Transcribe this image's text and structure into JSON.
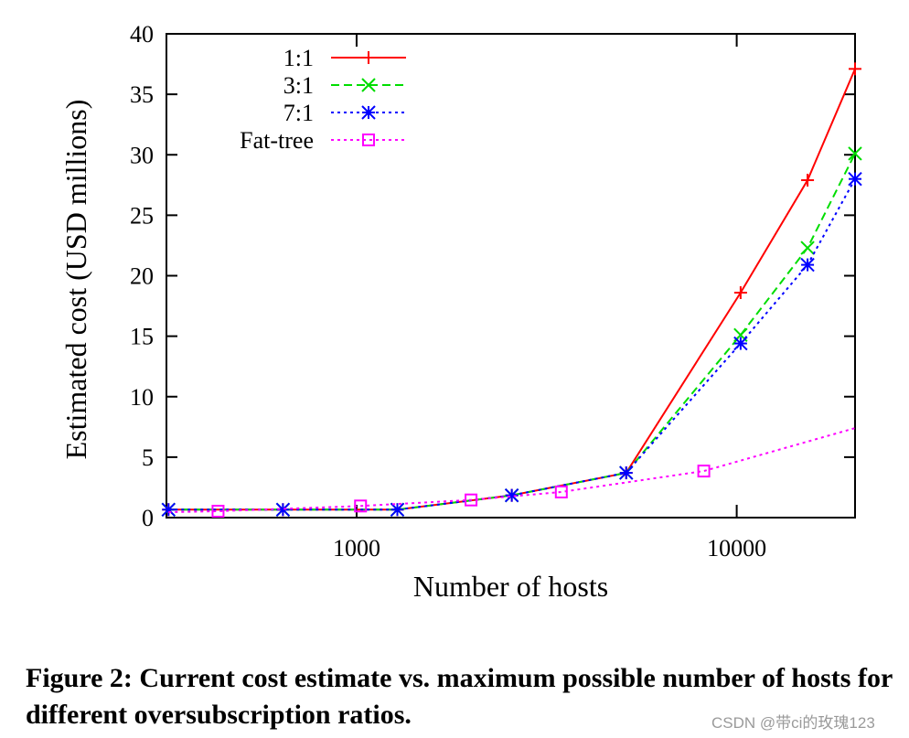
{
  "chart_data": {
    "type": "line",
    "xlabel": "Number of hosts",
    "ylabel": "Estimated cost (USD millions)",
    "xscale": "log",
    "xlim": [
      316,
      20480
    ],
    "ylim": [
      0,
      40
    ],
    "xticks": [
      1000,
      10000
    ],
    "xtick_labels": [
      "1000",
      "10000"
    ],
    "yticks": [
      0,
      5,
      10,
      15,
      20,
      25,
      30,
      35,
      40
    ],
    "grid": false,
    "legend_position": "top-left",
    "series": [
      {
        "name": "1:1",
        "color": "#ff0000",
        "dash": "solid",
        "marker": "plus",
        "x": [
          320,
          640,
          1280,
          2560,
          5120,
          10240,
          15360,
          20480
        ],
        "y": [
          0.66,
          0.66,
          0.66,
          1.84,
          3.7,
          18.6,
          27.9,
          37.1
        ]
      },
      {
        "name": "3:1",
        "color": "#00dd00",
        "dash": "dashed",
        "marker": "x",
        "x": [
          320,
          640,
          1280,
          2560,
          5120,
          10240,
          15360,
          20480
        ],
        "y": [
          0.66,
          0.66,
          0.66,
          1.84,
          3.7,
          15.1,
          22.3,
          30.1
        ]
      },
      {
        "name": "7:1",
        "color": "#0000ff",
        "dash": "dotted",
        "marker": "asterisk",
        "x": [
          320,
          640,
          1280,
          2560,
          5120,
          10240,
          15360,
          20480
        ],
        "y": [
          0.66,
          0.66,
          0.66,
          1.84,
          3.7,
          14.4,
          20.9,
          28.0
        ]
      },
      {
        "name": "Fat-tree",
        "color": "#ff00ff",
        "dash": "dotted",
        "marker": "square",
        "x": [
          320,
          432,
          1024,
          2000,
          3456,
          8192,
          20480
        ],
        "y": [
          0.45,
          0.53,
          0.96,
          1.46,
          2.12,
          3.85,
          7.4
        ],
        "marked": [
          false,
          true,
          true,
          true,
          true,
          true,
          false
        ]
      }
    ]
  },
  "caption": "Figure 2: Current cost estimate vs. maximum possible number of hosts for different oversubscription ratios.",
  "watermark": "CSDN @带ci的玫瑰123"
}
